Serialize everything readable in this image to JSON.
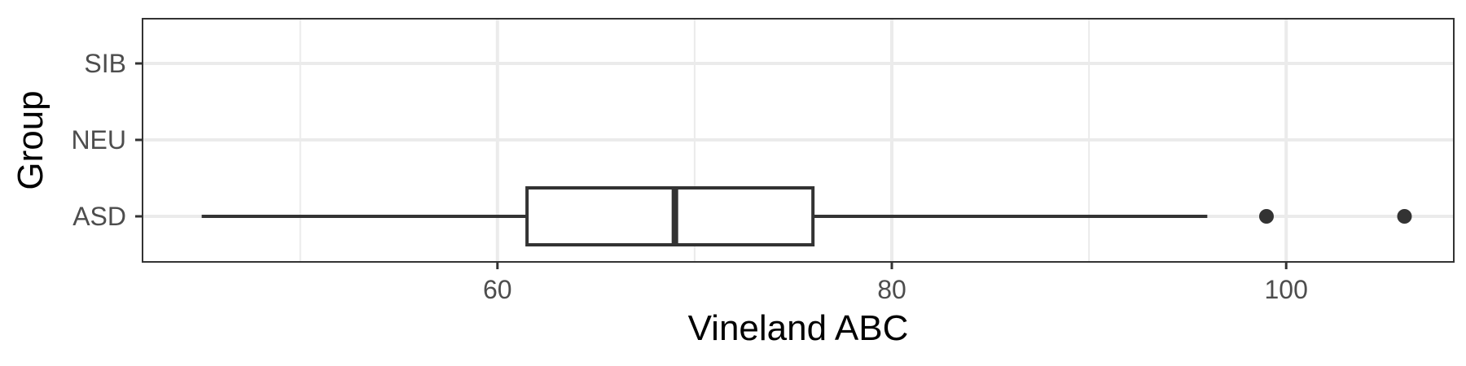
{
  "chart_data": {
    "type": "box",
    "orientation": "horizontal",
    "xlabel": "Vineland ABC",
    "ylabel": "Group",
    "xlim": [
      42,
      108.5
    ],
    "x_ticks": [
      60,
      80,
      100
    ],
    "x_minor_ticks": [
      50,
      70,
      90
    ],
    "x_tick_labels": [
      "60",
      "80",
      "100"
    ],
    "categories": [
      "ASD",
      "NEU",
      "SIB"
    ],
    "boxes": [
      {
        "category": "ASD",
        "whisker_low": 45,
        "q1": 61.5,
        "median": 69,
        "q3": 76,
        "whisker_high": 96,
        "outliers": [
          99,
          106
        ]
      }
    ],
    "grid": true,
    "theme": "bw",
    "colors": {
      "box_line": "#333333",
      "box_fill": "#ffffff",
      "grid": "#ebebeb",
      "panel_border": "#333333",
      "point": "#333333"
    }
  }
}
